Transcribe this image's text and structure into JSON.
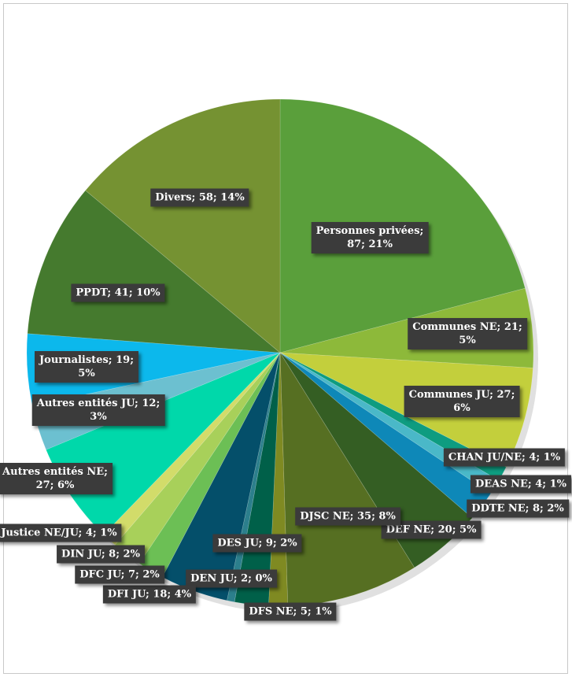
{
  "chart_data": {
    "type": "pie",
    "title": "",
    "start": "top",
    "direction": "clockwise",
    "slices": [
      {
        "label": "Personnes privées",
        "value": 87,
        "percent": "21%",
        "color": "#5a9f3b"
      },
      {
        "label": "Communes NE",
        "value": 21,
        "percent": "5%",
        "color": "#8db93a"
      },
      {
        "label": "Communes JU",
        "value": 27,
        "percent": "6%",
        "color": "#c3cf3c"
      },
      {
        "label": "CHAN JU/NE",
        "value": 4,
        "percent": "1%",
        "color": "#0e9c80"
      },
      {
        "label": "DEAS NE",
        "value": 4,
        "percent": "1%",
        "color": "#4ab8c8"
      },
      {
        "label": "DDTE NE",
        "value": 8,
        "percent": "2%",
        "color": "#0e88b8"
      },
      {
        "label": "DEF NE",
        "value": 20,
        "percent": "5%",
        "color": "#345e23"
      },
      {
        "label": "DJSC NE",
        "value": 35,
        "percent": "8%",
        "color": "#566f22"
      },
      {
        "label": "DFS NE",
        "value": 5,
        "percent": "1%",
        "color": "#7f8a22"
      },
      {
        "label": "DES JU",
        "value": 9,
        "percent": "2%",
        "color": "#006049"
      },
      {
        "label": "DEN JU",
        "value": 2,
        "percent": "0%",
        "color": "#2c7f8c"
      },
      {
        "label": "DFI JU",
        "value": 18,
        "percent": "4%",
        "color": "#044f6a"
      },
      {
        "label": "DFC JU",
        "value": 7,
        "percent": "2%",
        "color": "#6cbf55"
      },
      {
        "label": "DIN JU",
        "value": 8,
        "percent": "2%",
        "color": "#a8d05a"
      },
      {
        "label": "Justice NE/JU",
        "value": 4,
        "percent": "1%",
        "color": "#d2dc6a"
      },
      {
        "label": "Autres entités NE",
        "value": 27,
        "percent": "6%",
        "color": "#00d8aa"
      },
      {
        "label": "Autres entités JU",
        "value": 12,
        "percent": "3%",
        "color": "#6cc0d0"
      },
      {
        "label": "Journalistes",
        "value": 19,
        "percent": "5%",
        "color": "#0cb8ec"
      },
      {
        "label": "PPDT",
        "value": 41,
        "percent": "10%",
        "color": "#457a2e"
      },
      {
        "label": "Divers",
        "value": 58,
        "percent": "14%",
        "color": "#759232"
      }
    ]
  }
}
